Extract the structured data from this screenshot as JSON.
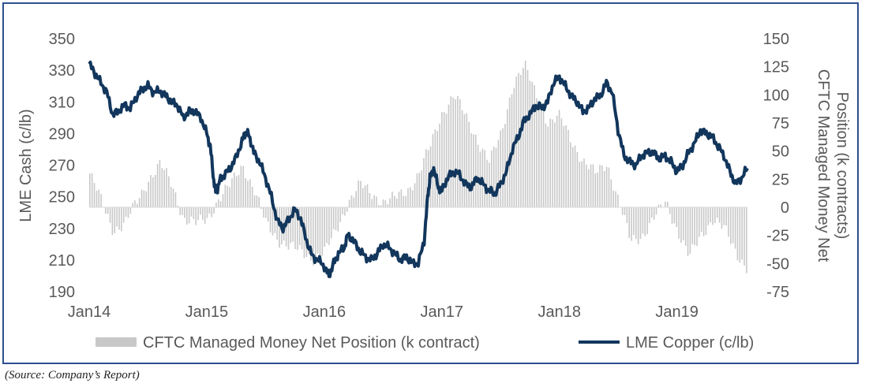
{
  "source_note": "(Source: Company’s Report)",
  "chart_data": {
    "type": "line",
    "x_ticks": [
      "Jan14",
      "Jan15",
      "Jan16",
      "Jan17",
      "Jan18",
      "Jan19"
    ],
    "y_left": {
      "label": "LME Cash (c/lb)",
      "ticks": [
        "350",
        "330",
        "310",
        "290",
        "270",
        "250",
        "230",
        "210",
        "190"
      ],
      "range": [
        185,
        350
      ]
    },
    "y_right": {
      "label_lines": [
        "CFTC Managed Money Net",
        "Position (k contracts)"
      ],
      "ticks": [
        "150",
        "125",
        "100",
        "75",
        "50",
        "25",
        "0",
        "-25",
        "-50",
        "-75"
      ],
      "range": [
        -80,
        150
      ]
    },
    "legend": {
      "placement": "bottom",
      "items": [
        "CFTC Managed Money Net Position (k contract)",
        "LME Copper (c/lb)"
      ]
    },
    "series": [
      {
        "name": "LME Copper (c/lb)",
        "axis": "left",
        "style": "line",
        "color": "#12365c",
        "points": [
          [
            2014.0,
            334
          ],
          [
            2014.05,
            328
          ],
          [
            2014.1,
            322
          ],
          [
            2014.15,
            316
          ],
          [
            2014.2,
            302
          ],
          [
            2014.25,
            304
          ],
          [
            2014.3,
            308
          ],
          [
            2014.35,
            306
          ],
          [
            2014.4,
            313
          ],
          [
            2014.45,
            318
          ],
          [
            2014.5,
            320
          ],
          [
            2014.55,
            316
          ],
          [
            2014.6,
            317
          ],
          [
            2014.65,
            314
          ],
          [
            2014.7,
            310
          ],
          [
            2014.75,
            308
          ],
          [
            2014.8,
            300
          ],
          [
            2014.85,
            304
          ],
          [
            2014.9,
            304
          ],
          [
            2014.95,
            300
          ],
          [
            2015.0,
            290
          ],
          [
            2015.03,
            282
          ],
          [
            2015.06,
            260
          ],
          [
            2015.08,
            252
          ],
          [
            2015.11,
            260
          ],
          [
            2015.15,
            264
          ],
          [
            2015.2,
            268
          ],
          [
            2015.25,
            275
          ],
          [
            2015.3,
            285
          ],
          [
            2015.33,
            291
          ],
          [
            2015.36,
            289
          ],
          [
            2015.4,
            278
          ],
          [
            2015.45,
            272
          ],
          [
            2015.5,
            262
          ],
          [
            2015.55,
            250
          ],
          [
            2015.6,
            235
          ],
          [
            2015.65,
            230
          ],
          [
            2015.7,
            236
          ],
          [
            2015.75,
            242
          ],
          [
            2015.8,
            236
          ],
          [
            2015.85,
            222
          ],
          [
            2015.9,
            212
          ],
          [
            2015.95,
            210
          ],
          [
            2016.0,
            206
          ],
          [
            2016.04,
            200
          ],
          [
            2016.08,
            208
          ],
          [
            2016.12,
            214
          ],
          [
            2016.17,
            218
          ],
          [
            2016.2,
            226
          ],
          [
            2016.25,
            222
          ],
          [
            2016.3,
            216
          ],
          [
            2016.35,
            212
          ],
          [
            2016.4,
            210
          ],
          [
            2016.45,
            214
          ],
          [
            2016.5,
            220
          ],
          [
            2016.55,
            218
          ],
          [
            2016.6,
            214
          ],
          [
            2016.65,
            210
          ],
          [
            2016.7,
            212
          ],
          [
            2016.75,
            208
          ],
          [
            2016.8,
            208
          ],
          [
            2016.85,
            222
          ],
          [
            2016.88,
            250
          ],
          [
            2016.9,
            262
          ],
          [
            2016.93,
            268
          ],
          [
            2016.97,
            256
          ],
          [
            2017.0,
            254
          ],
          [
            2017.05,
            262
          ],
          [
            2017.1,
            266
          ],
          [
            2017.15,
            264
          ],
          [
            2017.2,
            258
          ],
          [
            2017.25,
            256
          ],
          [
            2017.3,
            262
          ],
          [
            2017.35,
            258
          ],
          [
            2017.4,
            254
          ],
          [
            2017.45,
            252
          ],
          [
            2017.5,
            258
          ],
          [
            2017.55,
            266
          ],
          [
            2017.6,
            280
          ],
          [
            2017.65,
            288
          ],
          [
            2017.7,
            298
          ],
          [
            2017.75,
            302
          ],
          [
            2017.8,
            308
          ],
          [
            2017.85,
            306
          ],
          [
            2017.9,
            310
          ],
          [
            2017.95,
            322
          ],
          [
            2018.0,
            326
          ],
          [
            2018.05,
            320
          ],
          [
            2018.1,
            314
          ],
          [
            2018.15,
            310
          ],
          [
            2018.2,
            304
          ],
          [
            2018.25,
            306
          ],
          [
            2018.3,
            312
          ],
          [
            2018.35,
            314
          ],
          [
            2018.4,
            322
          ],
          [
            2018.45,
            316
          ],
          [
            2018.5,
            292
          ],
          [
            2018.55,
            276
          ],
          [
            2018.6,
            272
          ],
          [
            2018.65,
            270
          ],
          [
            2018.7,
            276
          ],
          [
            2018.75,
            278
          ],
          [
            2018.8,
            278
          ],
          [
            2018.85,
            274
          ],
          [
            2018.9,
            276
          ],
          [
            2018.95,
            272
          ],
          [
            2019.0,
            266
          ],
          [
            2019.05,
            270
          ],
          [
            2019.1,
            278
          ],
          [
            2019.15,
            284
          ],
          [
            2019.2,
            292
          ],
          [
            2019.25,
            290
          ],
          [
            2019.3,
            288
          ],
          [
            2019.35,
            282
          ],
          [
            2019.4,
            276
          ],
          [
            2019.45,
            266
          ],
          [
            2019.5,
            258
          ],
          [
            2019.55,
            262
          ],
          [
            2019.6,
            268
          ]
        ]
      },
      {
        "name": "CFTC Managed Money Net Position (k contract)",
        "axis": "right",
        "style": "bar",
        "color": "#c8c8c8",
        "points": [
          [
            2014.0,
            30
          ],
          [
            2014.1,
            5
          ],
          [
            2014.2,
            -20
          ],
          [
            2014.3,
            -15
          ],
          [
            2014.4,
            5
          ],
          [
            2014.5,
            25
          ],
          [
            2014.6,
            38
          ],
          [
            2014.7,
            20
          ],
          [
            2014.8,
            -10
          ],
          [
            2014.9,
            -15
          ],
          [
            2015.0,
            -10
          ],
          [
            2015.1,
            8
          ],
          [
            2015.2,
            20
          ],
          [
            2015.3,
            38
          ],
          [
            2015.4,
            15
          ],
          [
            2015.5,
            -15
          ],
          [
            2015.6,
            -28
          ],
          [
            2015.7,
            -35
          ],
          [
            2015.8,
            -40
          ],
          [
            2015.9,
            -45
          ],
          [
            2016.0,
            -40
          ],
          [
            2016.1,
            -20
          ],
          [
            2016.2,
            5
          ],
          [
            2016.3,
            20
          ],
          [
            2016.4,
            12
          ],
          [
            2016.5,
            5
          ],
          [
            2016.6,
            8
          ],
          [
            2016.7,
            15
          ],
          [
            2016.8,
            30
          ],
          [
            2016.9,
            55
          ],
          [
            2017.0,
            85
          ],
          [
            2017.1,
            100
          ],
          [
            2017.2,
            80
          ],
          [
            2017.3,
            60
          ],
          [
            2017.4,
            40
          ],
          [
            2017.5,
            65
          ],
          [
            2017.6,
            110
          ],
          [
            2017.7,
            125
          ],
          [
            2017.8,
            100
          ],
          [
            2017.9,
            75
          ],
          [
            2018.0,
            80
          ],
          [
            2018.1,
            60
          ],
          [
            2018.2,
            40
          ],
          [
            2018.3,
            30
          ],
          [
            2018.4,
            40
          ],
          [
            2018.5,
            5
          ],
          [
            2018.6,
            -30
          ],
          [
            2018.7,
            -25
          ],
          [
            2018.8,
            -10
          ],
          [
            2018.9,
            5
          ],
          [
            2019.0,
            -20
          ],
          [
            2019.1,
            -45
          ],
          [
            2019.2,
            -25
          ],
          [
            2019.3,
            -10
          ],
          [
            2019.4,
            -20
          ],
          [
            2019.5,
            -40
          ],
          [
            2019.6,
            -55
          ]
        ]
      }
    ]
  }
}
